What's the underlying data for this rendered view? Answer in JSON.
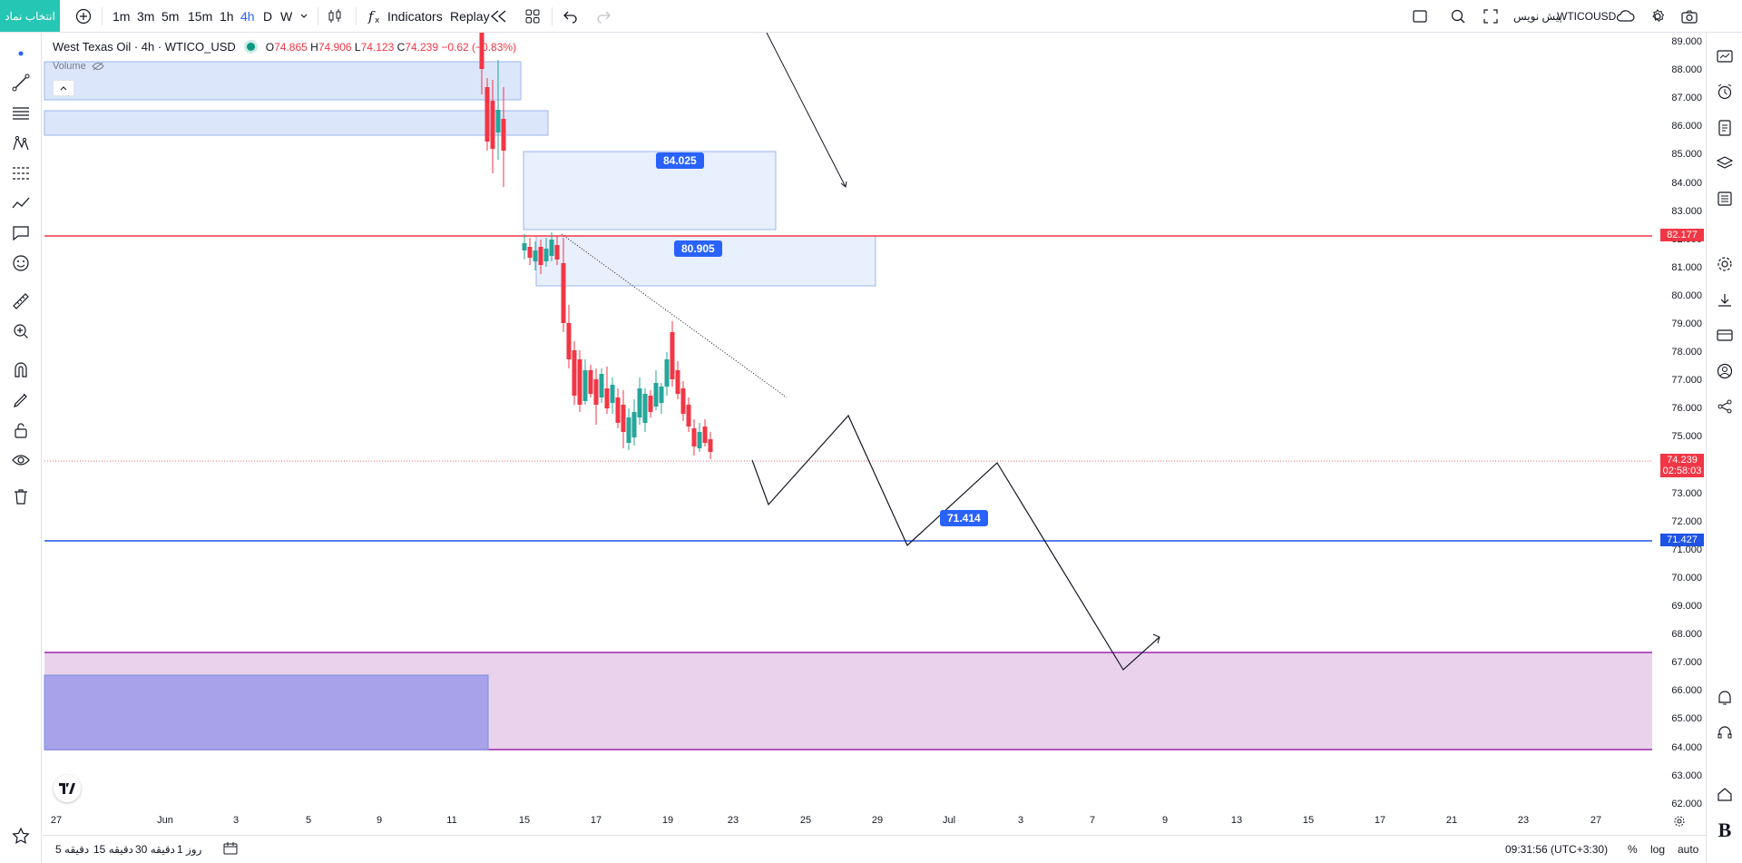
{
  "toolbar": {
    "symbol_chip": "انتخاب نماد",
    "intervals": [
      "1m",
      "3m",
      "5m",
      "15m",
      "1h",
      "4h",
      "D",
      "W"
    ],
    "active_interval": "4h",
    "indicators_label": "Indicators",
    "replay_label": "Replay",
    "symbol_search": "WTICOUSD",
    "prediction_label": "پیش نویس"
  },
  "legend": {
    "title": "West Texas Oil · 4h · WTICO_USD",
    "open_key": "O",
    "open": "74.865",
    "high_key": "H",
    "high": "74.906",
    "low_key": "L",
    "low": "74.123",
    "close_key": "C",
    "close": "74.239",
    "change": "−0.62 (−0.83%)",
    "volume_label": "Volume"
  },
  "price_axis": {
    "ticks": [
      "89.000",
      "88.000",
      "87.000",
      "86.000",
      "85.000",
      "84.000",
      "83.000",
      "82.000",
      "81.000",
      "80.000",
      "79.000",
      "78.000",
      "77.000",
      "76.000",
      "75.000",
      "74.000",
      "73.000",
      "72.000",
      "71.000",
      "70.000",
      "69.000",
      "68.000",
      "67.000",
      "66.000",
      "65.000",
      "64.000",
      "63.000",
      "62.000"
    ],
    "badge_red": "82.177",
    "badge_current": "74.239",
    "badge_countdown": "02:58:03",
    "badge_blue": "71.427"
  },
  "time_axis": {
    "labels": [
      "27",
      "Jun",
      "3",
      "5",
      "9",
      "11",
      "15",
      "17",
      "19",
      "23",
      "25",
      "29",
      "Jul",
      "3",
      "7",
      "9",
      "13",
      "15",
      "17",
      "21",
      "23",
      "27"
    ]
  },
  "annotations": {
    "label_84": "84.025",
    "label_80": "80.905",
    "label_71": "71.414"
  },
  "bottom": {
    "ranges": [
      "5 دقیقه",
      "15 دقیقه",
      "30 دقیقه",
      "1 روز"
    ],
    "clock": "09:31:56 (UTC+3:30)",
    "percent": "%",
    "log": "log",
    "auto": "auto"
  },
  "colors": {
    "up": "#26a69a",
    "down": "#f23645",
    "accent": "#2962ff",
    "zone_blue": "#dbe6fb",
    "zone_purple": "#e6c8e8",
    "zone_violet": "#a59fea"
  }
}
